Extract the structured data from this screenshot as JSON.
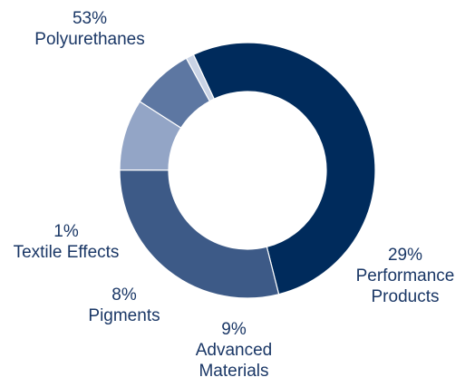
{
  "chart_data": {
    "type": "pie",
    "title": "",
    "donut": true,
    "series": [
      {
        "name": "Polyurethanes",
        "value": 53,
        "pct_label": "53%",
        "label_lines": [
          "Polyurethanes"
        ],
        "color": "#002b5c"
      },
      {
        "name": "Performance Products",
        "value": 29,
        "pct_label": "29%",
        "label_lines": [
          "Performance",
          "Products"
        ],
        "color": "#3d5a87"
      },
      {
        "name": "Advanced Materials",
        "value": 9,
        "pct_label": "9%",
        "label_lines": [
          "Advanced",
          "Materials"
        ],
        "color": "#93a5c6"
      },
      {
        "name": "Pigments",
        "value": 8,
        "pct_label": "8%",
        "label_lines": [
          "Pigments"
        ],
        "color": "#5d77a2"
      },
      {
        "name": "Textile Effects",
        "value": 1,
        "pct_label": "1%",
        "label_lines": [
          "Textile Effects"
        ],
        "color": "#c9d3e5"
      }
    ]
  }
}
